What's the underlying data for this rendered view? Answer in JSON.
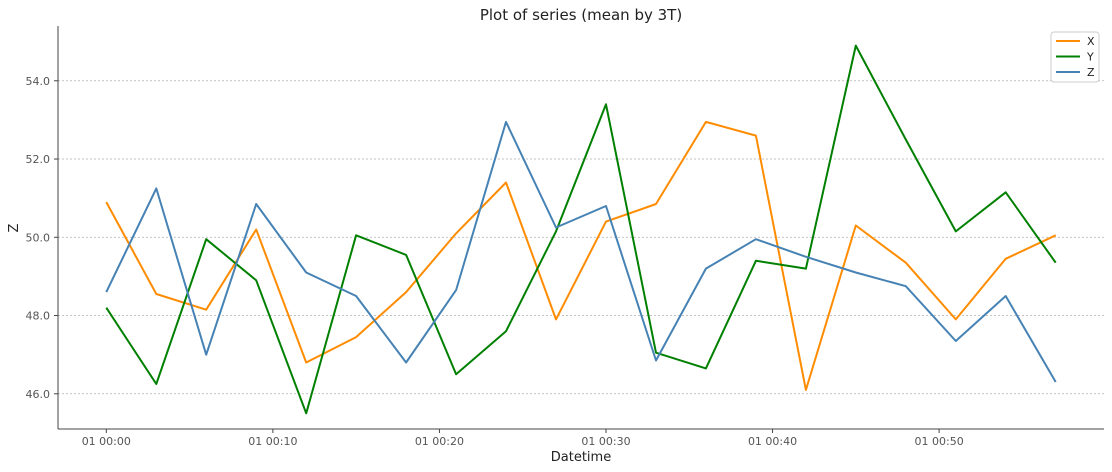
{
  "chart_data": {
    "type": "line",
    "title": "Plot of series (mean by 3T)",
    "xlabel": "Datetime",
    "ylabel": "Z",
    "ylim": [
      45.1,
      55.4
    ],
    "yticks": [
      46.0,
      48.0,
      50.0,
      52.0,
      54.0
    ],
    "ytick_labels": [
      "46.0",
      "48.0",
      "50.0",
      "52.0",
      "54.0"
    ],
    "xlim_minutes": [
      -2.9,
      59.9
    ],
    "xticks_minutes": [
      0,
      10,
      20,
      30,
      40,
      50
    ],
    "xtick_labels": [
      "01 00:00",
      "01 00:10",
      "01 00:20",
      "01 00:30",
      "01 00:40",
      "01 00:50"
    ],
    "grid": "y-dotted",
    "legend_position": "top-right",
    "x_minutes": [
      0,
      3,
      6,
      9,
      12,
      15,
      18,
      21,
      24,
      27,
      30,
      33,
      36,
      39,
      42,
      45,
      48,
      51,
      54,
      57
    ],
    "series": [
      {
        "name": "X",
        "color": "#ff8c00",
        "values": [
          50.9,
          48.55,
          48.15,
          50.2,
          46.8,
          47.45,
          48.6,
          50.1,
          51.4,
          47.9,
          50.4,
          50.85,
          52.95,
          52.6,
          46.1,
          50.3,
          49.35,
          47.9,
          49.45,
          50.05
        ]
      },
      {
        "name": "Y",
        "color": "#008000",
        "values": [
          48.2,
          46.25,
          49.95,
          48.9,
          45.5,
          50.05,
          49.55,
          46.5,
          47.6,
          50.15,
          53.4,
          47.05,
          46.65,
          49.4,
          49.2,
          54.9,
          52.5,
          50.15,
          51.15,
          49.35
        ]
      },
      {
        "name": "Z",
        "color": "#4682b4",
        "values": [
          48.6,
          51.25,
          47.0,
          50.85,
          49.1,
          48.5,
          46.8,
          48.65,
          52.95,
          50.25,
          50.8,
          46.85,
          49.2,
          49.95,
          49.5,
          49.1,
          48.75,
          47.35,
          48.5,
          46.3
        ]
      }
    ]
  }
}
